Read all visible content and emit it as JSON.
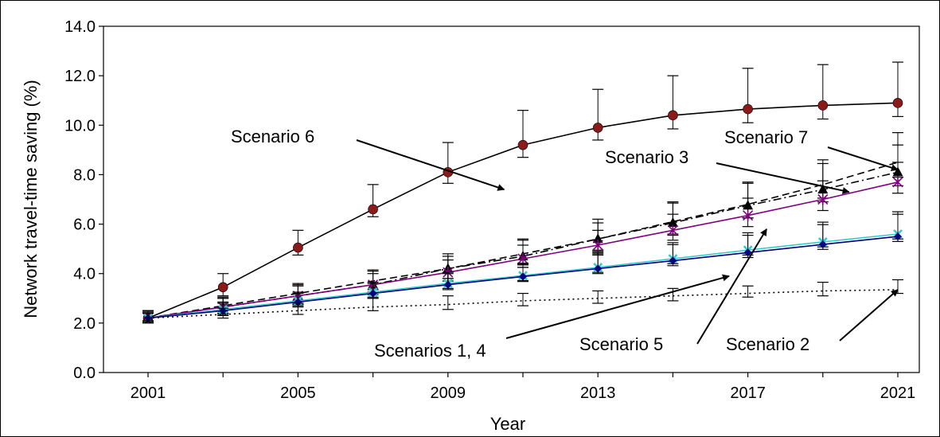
{
  "chart_data": {
    "type": "line",
    "title": "",
    "xlabel": "Year",
    "ylabel": "Network travel-time saving (%)",
    "xlim": [
      2000,
      2022
    ],
    "ylim": [
      0,
      14
    ],
    "x_ticks": [
      "2001",
      "2005",
      "2009",
      "2013",
      "2017",
      "2021"
    ],
    "y_ticks": [
      "0.0",
      "2.0",
      "4.0",
      "6.0",
      "8.0",
      "10.0",
      "12.0",
      "14.0"
    ],
    "x": [
      2001,
      2003,
      2005,
      2007,
      2009,
      2011,
      2013,
      2015,
      2017,
      2019,
      2021
    ],
    "grid": false,
    "series": [
      {
        "id": "scenario-6",
        "color": "#000000",
        "marker": "circle",
        "marker_color": "#8B1A1A",
        "dash": "solid",
        "values": [
          2.2,
          3.45,
          5.05,
          6.6,
          8.1,
          9.2,
          9.9,
          10.4,
          10.65,
          10.8,
          10.9
        ],
        "err_lower": [
          0.2,
          0.35,
          0.3,
          0.3,
          0.45,
          0.5,
          0.5,
          0.55,
          0.55,
          0.55,
          0.55
        ],
        "err_upper": [
          0.3,
          0.55,
          0.7,
          1.0,
          1.2,
          1.4,
          1.55,
          1.6,
          1.65,
          1.65,
          1.65
        ]
      },
      {
        "id": "scenario-7",
        "color": "#000000",
        "marker": "triangle",
        "marker_color": "#000000",
        "dash": "dashdot",
        "values": [
          2.2,
          2.65,
          3.1,
          3.55,
          4.2,
          4.7,
          5.4,
          6.05,
          6.75,
          7.4,
          8.1
        ],
        "err_lower": [
          0.2,
          0.3,
          0.35,
          0.4,
          0.4,
          0.45,
          0.45,
          0.5,
          0.5,
          0.5,
          0.55
        ],
        "err_upper": [
          0.3,
          0.35,
          0.45,
          0.55,
          0.6,
          0.7,
          0.8,
          0.85,
          0.95,
          1.05,
          1.1
        ]
      },
      {
        "id": "scenario-3",
        "color": "#000000",
        "marker": "none",
        "marker_color": "#000000",
        "dash": "dashed",
        "values": [
          2.2,
          2.7,
          3.2,
          3.7,
          4.2,
          4.8,
          5.4,
          6.1,
          6.8,
          7.6,
          8.5
        ],
        "err_lower": [
          0.2,
          0.3,
          0.3,
          0.35,
          0.4,
          0.45,
          0.5,
          0.5,
          0.55,
          0.55,
          0.6
        ],
        "err_upper": [
          0.3,
          0.35,
          0.4,
          0.45,
          0.5,
          0.55,
          0.65,
          0.75,
          0.85,
          1.0,
          1.2
        ]
      },
      {
        "id": "scenario-5",
        "color": "#800080",
        "marker": "star",
        "marker_color": "#800080",
        "dash": "solid",
        "values": [
          2.2,
          2.65,
          3.1,
          3.55,
          4.05,
          4.6,
          5.15,
          5.75,
          6.35,
          7.0,
          7.7
        ],
        "err_lower": [
          0.2,
          0.25,
          0.3,
          0.3,
          0.35,
          0.35,
          0.4,
          0.4,
          0.45,
          0.45,
          0.45
        ],
        "err_upper": [
          0.25,
          0.35,
          0.4,
          0.45,
          0.5,
          0.55,
          0.6,
          0.65,
          0.7,
          0.75,
          0.8
        ]
      },
      {
        "id": "scenario-4",
        "color": "#33CCCC",
        "marker": "x",
        "marker_color": "#33CCCC",
        "dash": "solid",
        "values": [
          2.2,
          2.55,
          2.9,
          3.25,
          3.6,
          3.92,
          4.25,
          4.6,
          4.95,
          5.28,
          5.6
        ],
        "err_lower": [
          0.15,
          0.2,
          0.2,
          0.2,
          0.2,
          0.2,
          0.2,
          0.2,
          0.2,
          0.2,
          0.2
        ],
        "err_upper": [
          0.2,
          0.3,
          0.35,
          0.4,
          0.45,
          0.5,
          0.6,
          0.65,
          0.7,
          0.8,
          0.9
        ]
      },
      {
        "id": "scenario-1",
        "color": "#000080",
        "marker": "diamond",
        "marker_color": "#000080",
        "dash": "solid",
        "values": [
          2.2,
          2.5,
          2.85,
          3.2,
          3.55,
          3.88,
          4.2,
          4.52,
          4.85,
          5.18,
          5.5
        ],
        "err_lower": [
          0.15,
          0.2,
          0.2,
          0.2,
          0.2,
          0.2,
          0.2,
          0.2,
          0.2,
          0.2,
          0.2
        ],
        "err_upper": [
          0.2,
          0.3,
          0.35,
          0.4,
          0.45,
          0.5,
          0.6,
          0.65,
          0.7,
          0.8,
          0.9
        ]
      },
      {
        "id": "scenario-2",
        "color": "#000000",
        "marker": "none",
        "marker_color": "#000000",
        "dash": "dotted",
        "values": [
          2.2,
          2.35,
          2.5,
          2.65,
          2.75,
          2.9,
          3.0,
          3.1,
          3.2,
          3.3,
          3.35
        ],
        "err_lower": [
          0.1,
          0.15,
          0.15,
          0.15,
          0.2,
          0.2,
          0.2,
          0.2,
          0.15,
          0.2,
          0.15
        ],
        "err_upper": [
          0.2,
          0.25,
          0.3,
          0.35,
          0.35,
          0.3,
          0.3,
          0.3,
          0.3,
          0.35,
          0.4
        ]
      }
    ],
    "annotations": [
      {
        "id": "scenario-6",
        "text": "Scenario 6",
        "points_to": [
          2010.5,
          7.4
        ]
      },
      {
        "id": "scenario-7",
        "text": "Scenario 7",
        "points_to": [
          2021.0,
          8.2
        ]
      },
      {
        "id": "scenario-3",
        "text": "Scenario 3",
        "points_to": [
          2019.7,
          7.3
        ]
      },
      {
        "id": "scenario-1-4",
        "text": "Scenarios 1, 4",
        "points_to": [
          2016.5,
          3.9
        ]
      },
      {
        "id": "scenario-5",
        "text": "Scenario 5",
        "points_to": [
          2017.5,
          5.8
        ]
      },
      {
        "id": "scenario-2",
        "text": "Scenario 2",
        "points_to": [
          2021.0,
          3.35
        ]
      }
    ]
  }
}
